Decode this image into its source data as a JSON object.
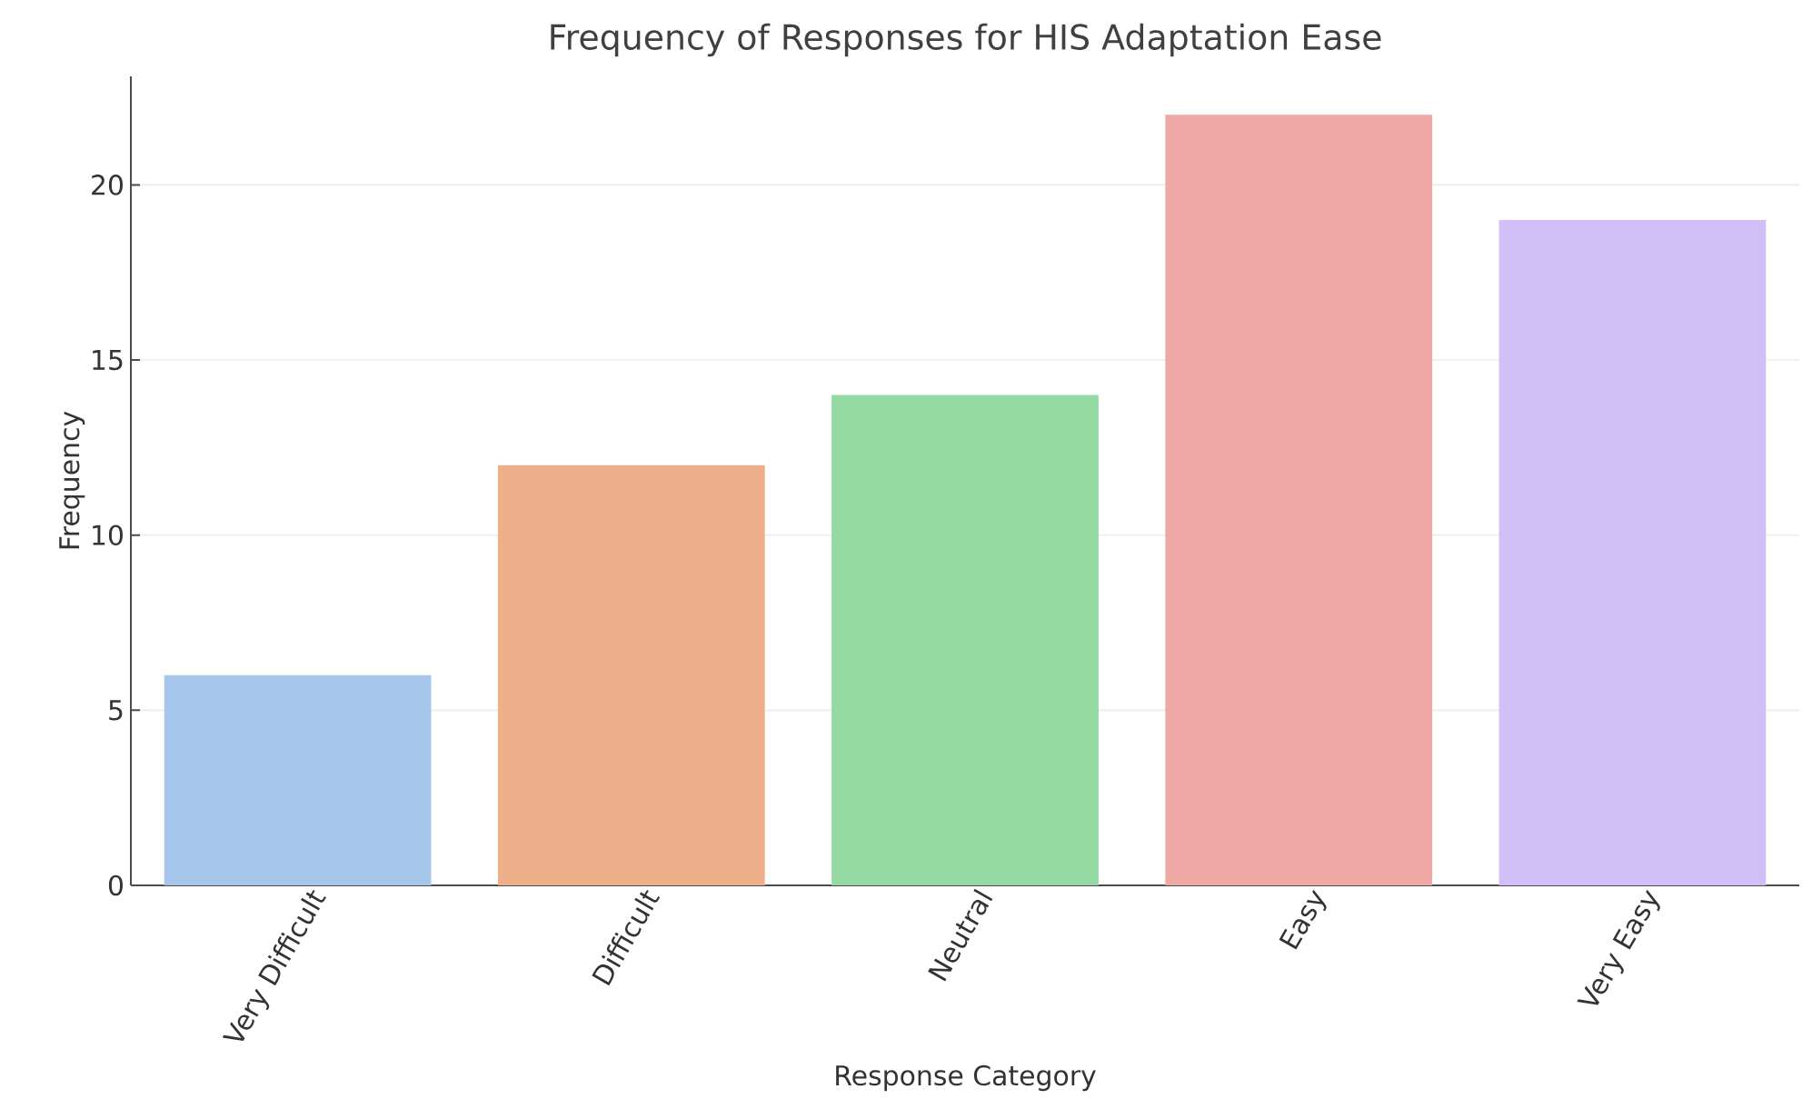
{
  "chart_data": {
    "type": "bar",
    "title": "Frequency of Responses for HIS Adaptation Ease",
    "xlabel": "Response Category",
    "ylabel": "Frequency",
    "categories": [
      "Very Difficult",
      "Difficult",
      "Neutral",
      "Easy",
      "Very Easy"
    ],
    "values": [
      6,
      12,
      14,
      22,
      19
    ],
    "colors": [
      "#a7c6ec",
      "#eeb08a",
      "#95d9a3",
      "#f0a8a4",
      "#d1c0f7"
    ],
    "ylim": [
      0,
      23.1
    ],
    "yticks": [
      0,
      5,
      10,
      15,
      20
    ],
    "grid": "y"
  }
}
